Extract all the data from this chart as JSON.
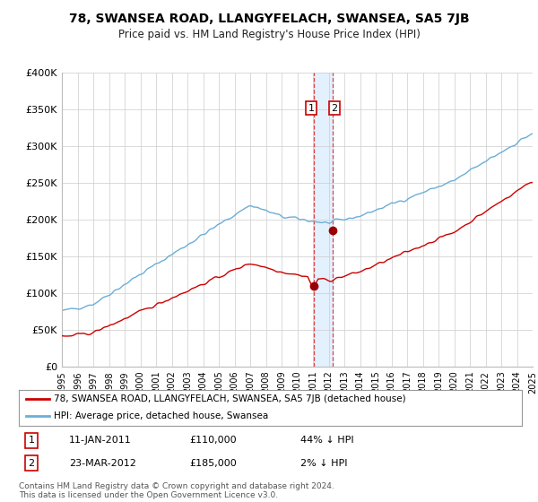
{
  "title": "78, SWANSEA ROAD, LLANGYFELACH, SWANSEA, SA5 7JB",
  "subtitle": "Price paid vs. HM Land Registry's House Price Index (HPI)",
  "ylim": [
    0,
    400000
  ],
  "yticks": [
    0,
    50000,
    100000,
    150000,
    200000,
    250000,
    300000,
    350000,
    400000
  ],
  "ytick_labels": [
    "£0",
    "£50K",
    "£100K",
    "£150K",
    "£200K",
    "£250K",
    "£300K",
    "£350K",
    "£400K"
  ],
  "x_start_year": 1995,
  "x_end_year": 2025,
  "transaction1_date": 2011.03,
  "transaction1_price": 110000,
  "transaction2_date": 2012.23,
  "transaction2_price": 185000,
  "hpi_color": "#6baed6",
  "price_color": "#cc0000",
  "vline_color": "#dd4444",
  "shade_color": "#ddeeff",
  "marker_color": "#990000",
  "legend_label1": "78, SWANSEA ROAD, LLANGYFELACH, SWANSEA, SA5 7JB (detached house)",
  "legend_label2": "HPI: Average price, detached house, Swansea",
  "footnote": "Contains HM Land Registry data © Crown copyright and database right 2024.\nThis data is licensed under the Open Government Licence v3.0.",
  "table_row1": [
    "1",
    "11-JAN-2011",
    "£110,000",
    "44% ↓ HPI"
  ],
  "table_row2": [
    "2",
    "23-MAR-2012",
    "£185,000",
    "2% ↓ HPI"
  ],
  "background_color": "#ffffff",
  "grid_color": "#cccccc"
}
